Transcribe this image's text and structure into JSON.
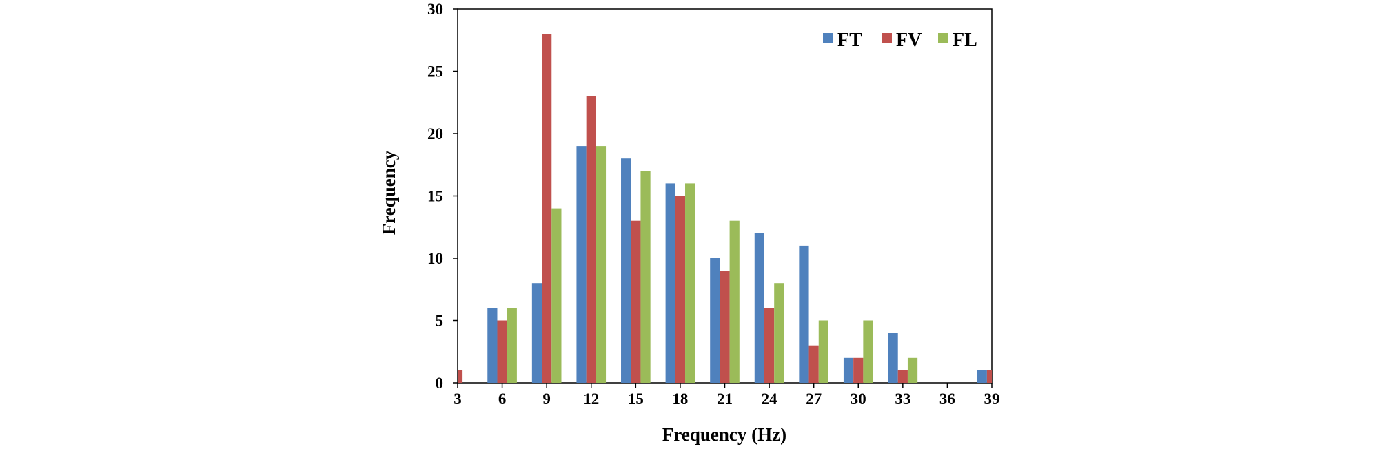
{
  "chart_data": {
    "type": "bar",
    "title": "",
    "xlabel": "Frequency (Hz)",
    "ylabel": "Frequency",
    "ylim": [
      0,
      30
    ],
    "yticks": [
      "0",
      "5",
      "10",
      "15",
      "20",
      "25",
      "30"
    ],
    "categories": [
      "3",
      "6",
      "9",
      "12",
      "15",
      "18",
      "21",
      "24",
      "27",
      "30",
      "33",
      "36",
      "39"
    ],
    "legend_position": "top-right",
    "grid": false,
    "series": [
      {
        "name": "FT",
        "color": "#4f81bd",
        "values": [
          0,
          6,
          8,
          19,
          18,
          16,
          10,
          12,
          11,
          2,
          4,
          0,
          1
        ]
      },
      {
        "name": "FV",
        "color": "#c0504d",
        "values": [
          1,
          5,
          28,
          23,
          13,
          15,
          9,
          6,
          3,
          2,
          1,
          0,
          1
        ]
      },
      {
        "name": "FL",
        "color": "#9bbb59",
        "values": [
          0,
          6,
          14,
          19,
          17,
          16,
          13,
          8,
          5,
          5,
          2,
          0,
          0
        ]
      }
    ]
  }
}
